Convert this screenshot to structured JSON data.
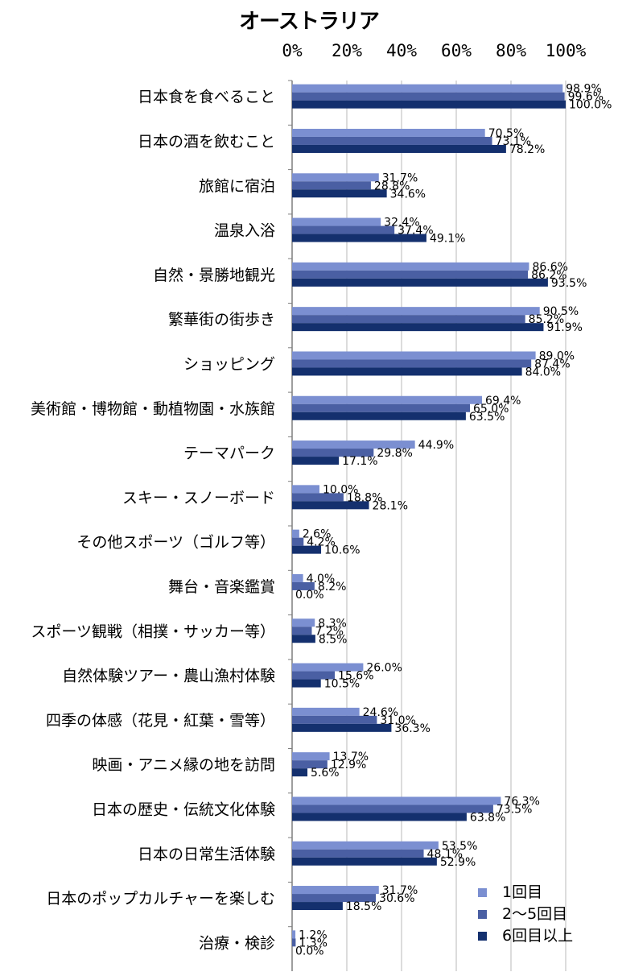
{
  "chart_data": {
    "type": "bar",
    "orientation": "horizontal",
    "title": "オーストラリア",
    "xlim": [
      0,
      100
    ],
    "x_ticks": [
      "0%",
      "20%",
      "40%",
      "60%",
      "80%",
      "100%"
    ],
    "grid": true,
    "legend_position": "bottom-right",
    "categories": [
      "日本食を食べること",
      "日本の酒を飲むこと",
      "旅館に宿泊",
      "温泉入浴",
      "自然・景勝地観光",
      "繁華街の街歩き",
      "ショッピング",
      "美術館・博物館・動植物園・水族館",
      "テーマパーク",
      "スキー・スノーボード",
      "その他スポーツ（ゴルフ等）",
      "舞台・音楽鑑賞",
      "スポーツ観戦（相撲・サッカー等）",
      "自然体験ツアー・農山漁村体験",
      "四季の体感（花見・紅葉・雪等）",
      "映画・アニメ縁の地を訪問",
      "日本の歴史・伝統文化体験",
      "日本の日常生活体験",
      "日本のポップカルチャーを楽しむ",
      "治療・検診"
    ],
    "series": [
      {
        "name": "1回目",
        "color": "#7b8fd1",
        "values": [
          98.9,
          70.5,
          31.7,
          32.4,
          86.6,
          90.5,
          89.0,
          69.4,
          44.9,
          10.0,
          2.6,
          4.0,
          8.3,
          26.0,
          24.6,
          13.7,
          76.3,
          53.5,
          31.7,
          1.2
        ],
        "labels": [
          "98.9%",
          "70.5%",
          "31.7%",
          "32.4%",
          "86.6%",
          "90.5%",
          "89.0%",
          "69.4%",
          "44.9%",
          "10.0%",
          "2.6%",
          "4.0%",
          "8.3%",
          "26.0%",
          "24.6%",
          "13.7%",
          "76.3%",
          "53.5%",
          "31.7%",
          "1.2%"
        ]
      },
      {
        "name": "2～5回目",
        "color": "#4a5fa3",
        "values": [
          99.6,
          73.1,
          28.8,
          37.4,
          86.2,
          85.2,
          87.4,
          65.0,
          29.8,
          18.8,
          4.2,
          8.2,
          7.2,
          15.6,
          31.0,
          12.9,
          73.5,
          48.1,
          30.6,
          1.3
        ],
        "labels": [
          "99.6%",
          "73.1%",
          "28.8%",
          "37.4%",
          "86.2%",
          "85.2%",
          "87.4%",
          "65.0%",
          "29.8%",
          "18.8%",
          "4.2%",
          "8.2%",
          "7.2%",
          "15.6%",
          "31.0%",
          "12.9%",
          "73.5%",
          "48.1%",
          "30.6%",
          "1.3%"
        ]
      },
      {
        "name": "6回目以上",
        "color": "#14306e",
        "values": [
          100.0,
          78.2,
          34.6,
          49.1,
          93.5,
          91.9,
          84.0,
          63.5,
          17.1,
          28.1,
          10.6,
          0.0,
          8.5,
          10.5,
          36.3,
          5.6,
          63.8,
          52.9,
          18.5,
          0.0
        ],
        "labels": [
          "100.0%",
          "78.2%",
          "34.6%",
          "49.1%",
          "93.5%",
          "91.9%",
          "84.0%",
          "63.5%",
          "17.1%",
          "28.1%",
          "10.6%",
          "0.0%",
          "8.5%",
          "10.5%",
          "36.3%",
          "5.6%",
          "63.8%",
          "52.9%",
          "18.5%",
          "0.0%"
        ]
      }
    ]
  }
}
